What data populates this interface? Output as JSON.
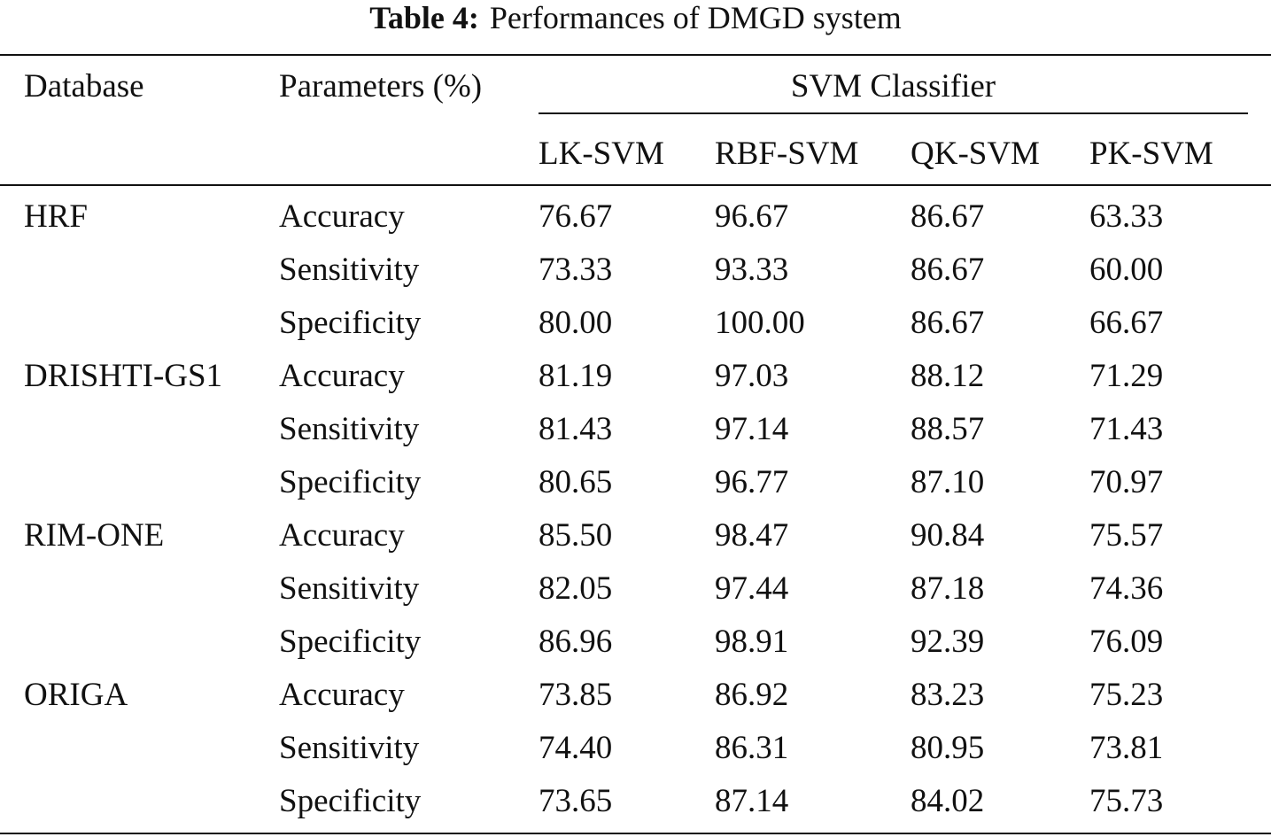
{
  "caption": {
    "label": "Table 4:",
    "text": "Performances of DMGD system"
  },
  "header": {
    "database": "Database",
    "parameters": "Parameters (%)",
    "group": "SVM Classifier",
    "columns": [
      "LK-SVM",
      "RBF-SVM",
      "QK-SVM",
      "PK-SVM"
    ]
  },
  "rows": [
    {
      "database": "HRF",
      "parameter": "Accuracy",
      "values": [
        "76.67",
        "96.67",
        "86.67",
        "63.33"
      ]
    },
    {
      "database": "",
      "parameter": "Sensitivity",
      "values": [
        "73.33",
        "93.33",
        "86.67",
        "60.00"
      ]
    },
    {
      "database": "",
      "parameter": "Specificity",
      "values": [
        "80.00",
        "100.00",
        "86.67",
        "66.67"
      ]
    },
    {
      "database": "DRISHTI-GS1",
      "parameter": "Accuracy",
      "values": [
        "81.19",
        "97.03",
        "88.12",
        "71.29"
      ]
    },
    {
      "database": "",
      "parameter": "Sensitivity",
      "values": [
        "81.43",
        "97.14",
        "88.57",
        "71.43"
      ]
    },
    {
      "database": "",
      "parameter": "Specificity",
      "values": [
        "80.65",
        "96.77",
        "87.10",
        "70.97"
      ]
    },
    {
      "database": "RIM-ONE",
      "parameter": "Accuracy",
      "values": [
        "85.50",
        "98.47",
        "90.84",
        "75.57"
      ]
    },
    {
      "database": "",
      "parameter": "Sensitivity",
      "values": [
        "82.05",
        "97.44",
        "87.18",
        "74.36"
      ]
    },
    {
      "database": "",
      "parameter": "Specificity",
      "values": [
        "86.96",
        "98.91",
        "92.39",
        "76.09"
      ]
    },
    {
      "database": "ORIGA",
      "parameter": "Accuracy",
      "values": [
        "73.85",
        "86.92",
        "83.23",
        "75.23"
      ]
    },
    {
      "database": "",
      "parameter": "Sensitivity",
      "values": [
        "74.40",
        "86.31",
        "80.95",
        "73.81"
      ]
    },
    {
      "database": "",
      "parameter": "Specificity",
      "values": [
        "73.65",
        "87.14",
        "84.02",
        "75.73"
      ]
    }
  ]
}
